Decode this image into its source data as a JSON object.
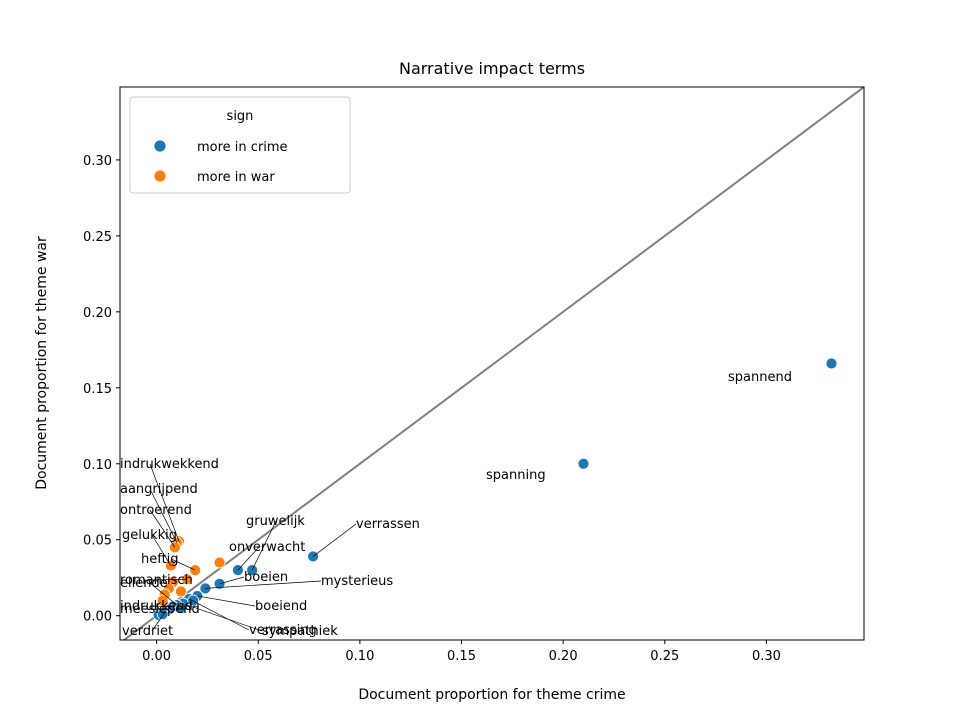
{
  "chart_data": {
    "type": "scatter",
    "title": "Narrative impact terms",
    "xlabel": "Document proportion for theme crime",
    "ylabel": "Document proportion for theme war",
    "xlim": [
      -0.018,
      0.348
    ],
    "ylim": [
      -0.016,
      0.348
    ],
    "xticks": [
      0.0,
      0.05,
      0.1,
      0.15,
      0.2,
      0.25,
      0.3
    ],
    "xtick_labels": [
      "0.00",
      "0.05",
      "0.10",
      "0.15",
      "0.20",
      "0.25",
      "0.30"
    ],
    "yticks": [
      0.0,
      0.05,
      0.1,
      0.15,
      0.2,
      0.25,
      0.3
    ],
    "ytick_labels": [
      "0.00",
      "0.05",
      "0.10",
      "0.15",
      "0.20",
      "0.25",
      "0.30"
    ],
    "diagonal": true,
    "legend": {
      "title": "sign",
      "placement": "top-left",
      "entries": [
        {
          "label": "more in crime",
          "color": "#1f77b4"
        },
        {
          "label": "more in war",
          "color": "#ff7f0e"
        }
      ]
    },
    "series": [
      {
        "name": "more in crime",
        "color": "#1f77b4",
        "points": [
          {
            "x": 0.332,
            "y": 0.166,
            "label": "spannend"
          },
          {
            "x": 0.21,
            "y": 0.1,
            "label": "spanning"
          },
          {
            "x": 0.077,
            "y": 0.039,
            "label": "verrassen"
          },
          {
            "x": 0.047,
            "y": 0.03,
            "label": "gruwelijk"
          },
          {
            "x": 0.04,
            "y": 0.03,
            "label": "onverwacht"
          },
          {
            "x": 0.031,
            "y": 0.021,
            "label": "boeien"
          },
          {
            "x": 0.024,
            "y": 0.018,
            "label": "mysterieus"
          },
          {
            "x": 0.02,
            "y": 0.013,
            "label": "boeiend"
          },
          {
            "x": 0.016,
            "y": 0.011,
            "label": "verrassing"
          },
          {
            "x": 0.013,
            "y": 0.008,
            "label": "sympathiek"
          },
          {
            "x": 0.01,
            "y": 0.007,
            "label": "ellende"
          },
          {
            "x": 0.008,
            "y": 0.006,
            "label": "indrukkend"
          },
          {
            "x": 0.006,
            "y": 0.004,
            "label": "meeslepend"
          },
          {
            "x": 0.004,
            "y": 0.002,
            "label": "verdriet"
          },
          {
            "x": 0.001,
            "y": 0.0005,
            "label": ""
          },
          {
            "x": 0.003,
            "y": 0.001,
            "label": ""
          },
          {
            "x": 0.012,
            "y": 0.005,
            "label": ""
          },
          {
            "x": 0.018,
            "y": 0.01,
            "label": ""
          }
        ]
      },
      {
        "name": "more in war",
        "color": "#ff7f0e",
        "points": [
          {
            "x": 0.011,
            "y": 0.049,
            "label": "indrukwekkend"
          },
          {
            "x": 0.01,
            "y": 0.048,
            "label": "aangrijpend"
          },
          {
            "x": 0.009,
            "y": 0.045,
            "label": "ontroerend"
          },
          {
            "x": 0.031,
            "y": 0.035,
            "label": ""
          },
          {
            "x": 0.007,
            "y": 0.033,
            "label": "gelukkig"
          },
          {
            "x": 0.019,
            "y": 0.03,
            "label": "heftig"
          },
          {
            "x": 0.015,
            "y": 0.024,
            "label": "romantisch"
          },
          {
            "x": 0.008,
            "y": 0.022,
            "label": ""
          },
          {
            "x": 0.006,
            "y": 0.018,
            "label": ""
          },
          {
            "x": 0.004,
            "y": 0.014,
            "label": ""
          },
          {
            "x": 0.012,
            "y": 0.016,
            "label": ""
          },
          {
            "x": 0.003,
            "y": 0.01,
            "label": ""
          }
        ]
      }
    ]
  }
}
